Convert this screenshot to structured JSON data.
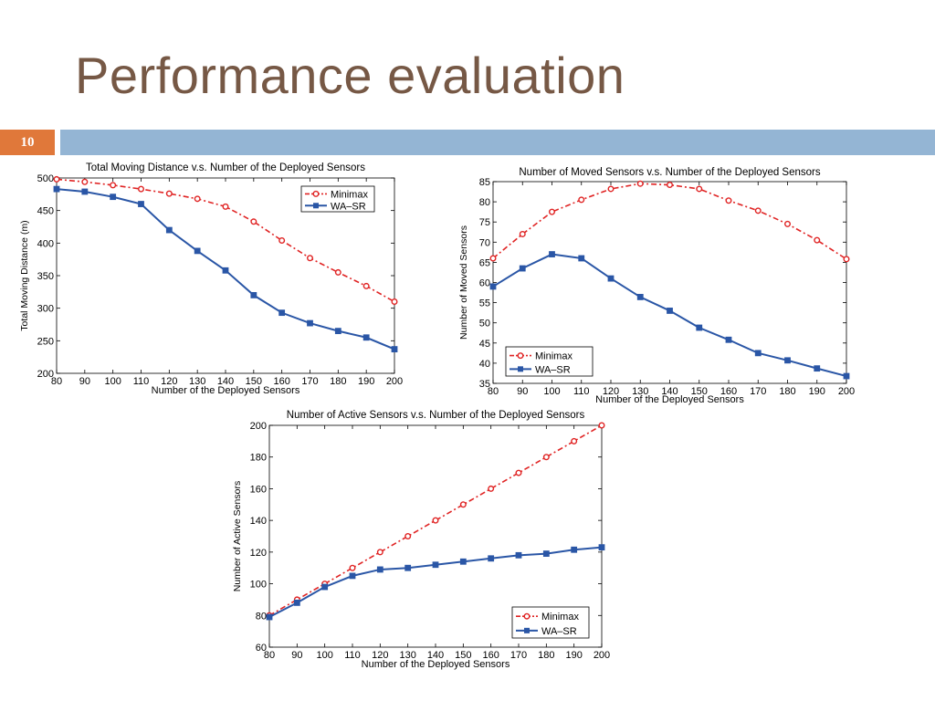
{
  "slide": {
    "title": "Performance evaluation",
    "slide_number": "10",
    "colors": {
      "title": "#765845",
      "number_bar": "#e0783a",
      "header_bar": "#94b5d4",
      "minimax": "#e02424",
      "wasr": "#2a56a6"
    }
  },
  "chart_data": [
    {
      "type": "line",
      "title": "Total Moving Distance v.s. Number of the Deployed Sensors",
      "xlabel": "Number of the Deployed Sensors",
      "ylabel": "Total Moving Distance (m)",
      "x": [
        80,
        90,
        100,
        110,
        120,
        130,
        140,
        150,
        160,
        170,
        180,
        190,
        200
      ],
      "xlim": [
        80,
        200
      ],
      "ylim": [
        200,
        500
      ],
      "xticks": [
        80,
        90,
        100,
        110,
        120,
        130,
        140,
        150,
        160,
        170,
        180,
        190,
        200
      ],
      "yticks": [
        200,
        250,
        300,
        350,
        400,
        450,
        500
      ],
      "legend_position": "top-right",
      "grid": false,
      "series": [
        {
          "name": "Minimax",
          "values": [
            498,
            494,
            489,
            483,
            476,
            468,
            456,
            433,
            404,
            377,
            355,
            334,
            310
          ]
        },
        {
          "name": "WA–SR",
          "values": [
            483,
            479,
            471,
            460,
            420,
            388,
            358,
            320,
            293,
            277,
            265,
            255,
            237
          ]
        }
      ]
    },
    {
      "type": "line",
      "title": "Number of Moved Sensors v.s. Number of the Deployed Sensors",
      "xlabel": "Number of the Deployed Sensors",
      "ylabel": "Number of Moved Sensors",
      "x": [
        80,
        90,
        100,
        110,
        120,
        130,
        140,
        150,
        160,
        170,
        180,
        190,
        200
      ],
      "xlim": [
        80,
        200
      ],
      "ylim": [
        35,
        85
      ],
      "xticks": [
        80,
        90,
        100,
        110,
        120,
        130,
        140,
        150,
        160,
        170,
        180,
        190,
        200
      ],
      "yticks": [
        35,
        40,
        45,
        50,
        55,
        60,
        65,
        70,
        75,
        80,
        85
      ],
      "legend_position": "bottom-left",
      "grid": false,
      "series": [
        {
          "name": "Minimax",
          "values": [
            66,
            72,
            77.5,
            80.5,
            83.2,
            84.5,
            84.2,
            83.2,
            80.3,
            77.8,
            74.5,
            70.5,
            65.8
          ]
        },
        {
          "name": "WA–SR",
          "values": [
            59,
            63.5,
            67,
            66,
            61,
            56.4,
            53,
            48.8,
            45.8,
            42.5,
            40.7,
            38.7,
            36.8
          ]
        }
      ]
    },
    {
      "type": "line",
      "title": "Number of Active Sensors v.s. Number of the Deployed Sensors",
      "xlabel": "Number of the Deployed Sensors",
      "ylabel": "Number of Active Sensors",
      "x": [
        80,
        90,
        100,
        110,
        120,
        130,
        140,
        150,
        160,
        170,
        180,
        190,
        200
      ],
      "xlim": [
        80,
        200
      ],
      "ylim": [
        60,
        200
      ],
      "xticks": [
        80,
        90,
        100,
        110,
        120,
        130,
        140,
        150,
        160,
        170,
        180,
        190,
        200
      ],
      "yticks": [
        60,
        80,
        100,
        120,
        140,
        160,
        180,
        200
      ],
      "legend_position": "bottom-right",
      "grid": false,
      "series": [
        {
          "name": "Minimax",
          "values": [
            80,
            90,
            100,
            110,
            120,
            130,
            140,
            150,
            160,
            170,
            180,
            190,
            200
          ]
        },
        {
          "name": "WA–SR",
          "values": [
            79,
            88,
            98,
            105,
            109,
            110,
            112,
            114,
            116,
            118,
            119,
            121.5,
            123
          ]
        }
      ]
    }
  ]
}
